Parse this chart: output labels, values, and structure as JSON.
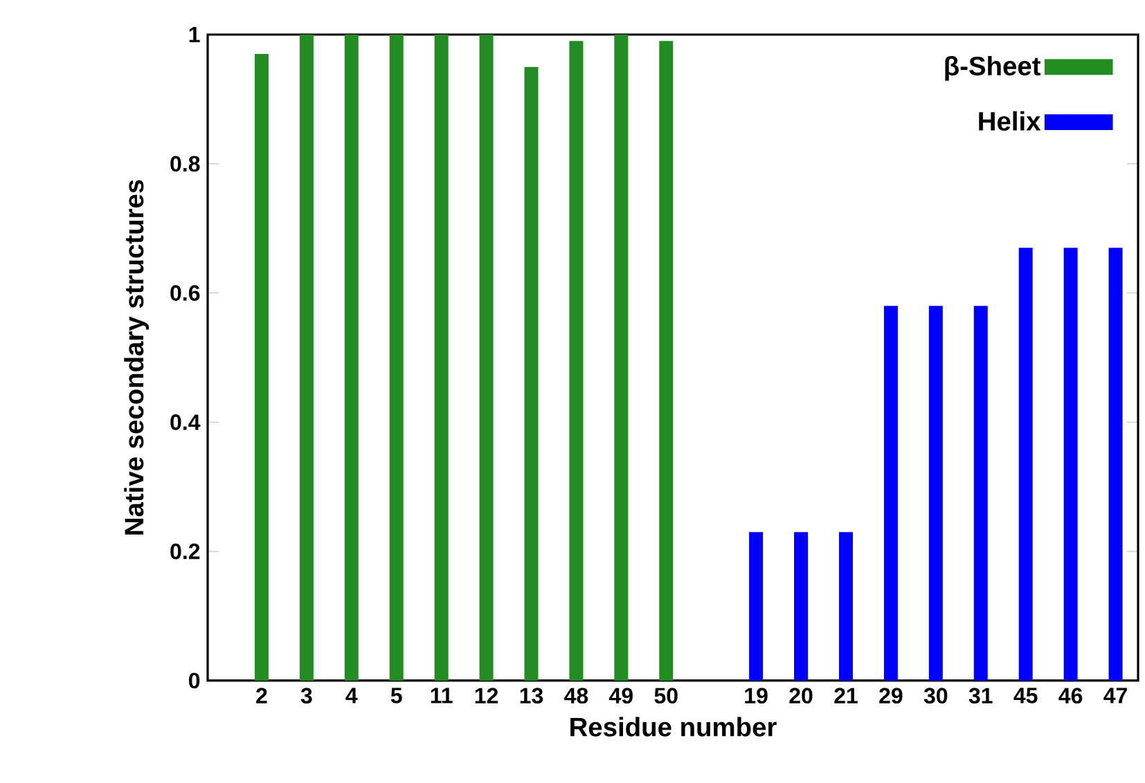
{
  "chart_data": {
    "type": "bar",
    "xlabel": "Residue number",
    "ylabel": "Native secondary structures",
    "categories": [
      "2",
      "3",
      "4",
      "5",
      "11",
      "12",
      "13",
      "48",
      "49",
      "50",
      null,
      "19",
      "20",
      "21",
      "29",
      "30",
      "31",
      "45",
      "46",
      "47"
    ],
    "series": [
      {
        "name": "β-Sheet",
        "color": "#228b22",
        "values": [
          0.97,
          1,
          1,
          1,
          1,
          1,
          0.95,
          0.99,
          1,
          0.99,
          null,
          null,
          null,
          null,
          null,
          null,
          null,
          null,
          null,
          null
        ]
      },
      {
        "name": "Helix",
        "color": "#0000ff",
        "values": [
          null,
          null,
          null,
          null,
          null,
          null,
          null,
          null,
          null,
          null,
          null,
          0.23,
          0.23,
          0.23,
          0.58,
          0.58,
          0.58,
          0.67,
          0.67,
          0.67
        ]
      }
    ],
    "ylim": [
      0,
      1
    ],
    "yticks": [
      0,
      0.2,
      0.4,
      0.6,
      0.8,
      1
    ],
    "legend": "top right",
    "grid": false
  }
}
